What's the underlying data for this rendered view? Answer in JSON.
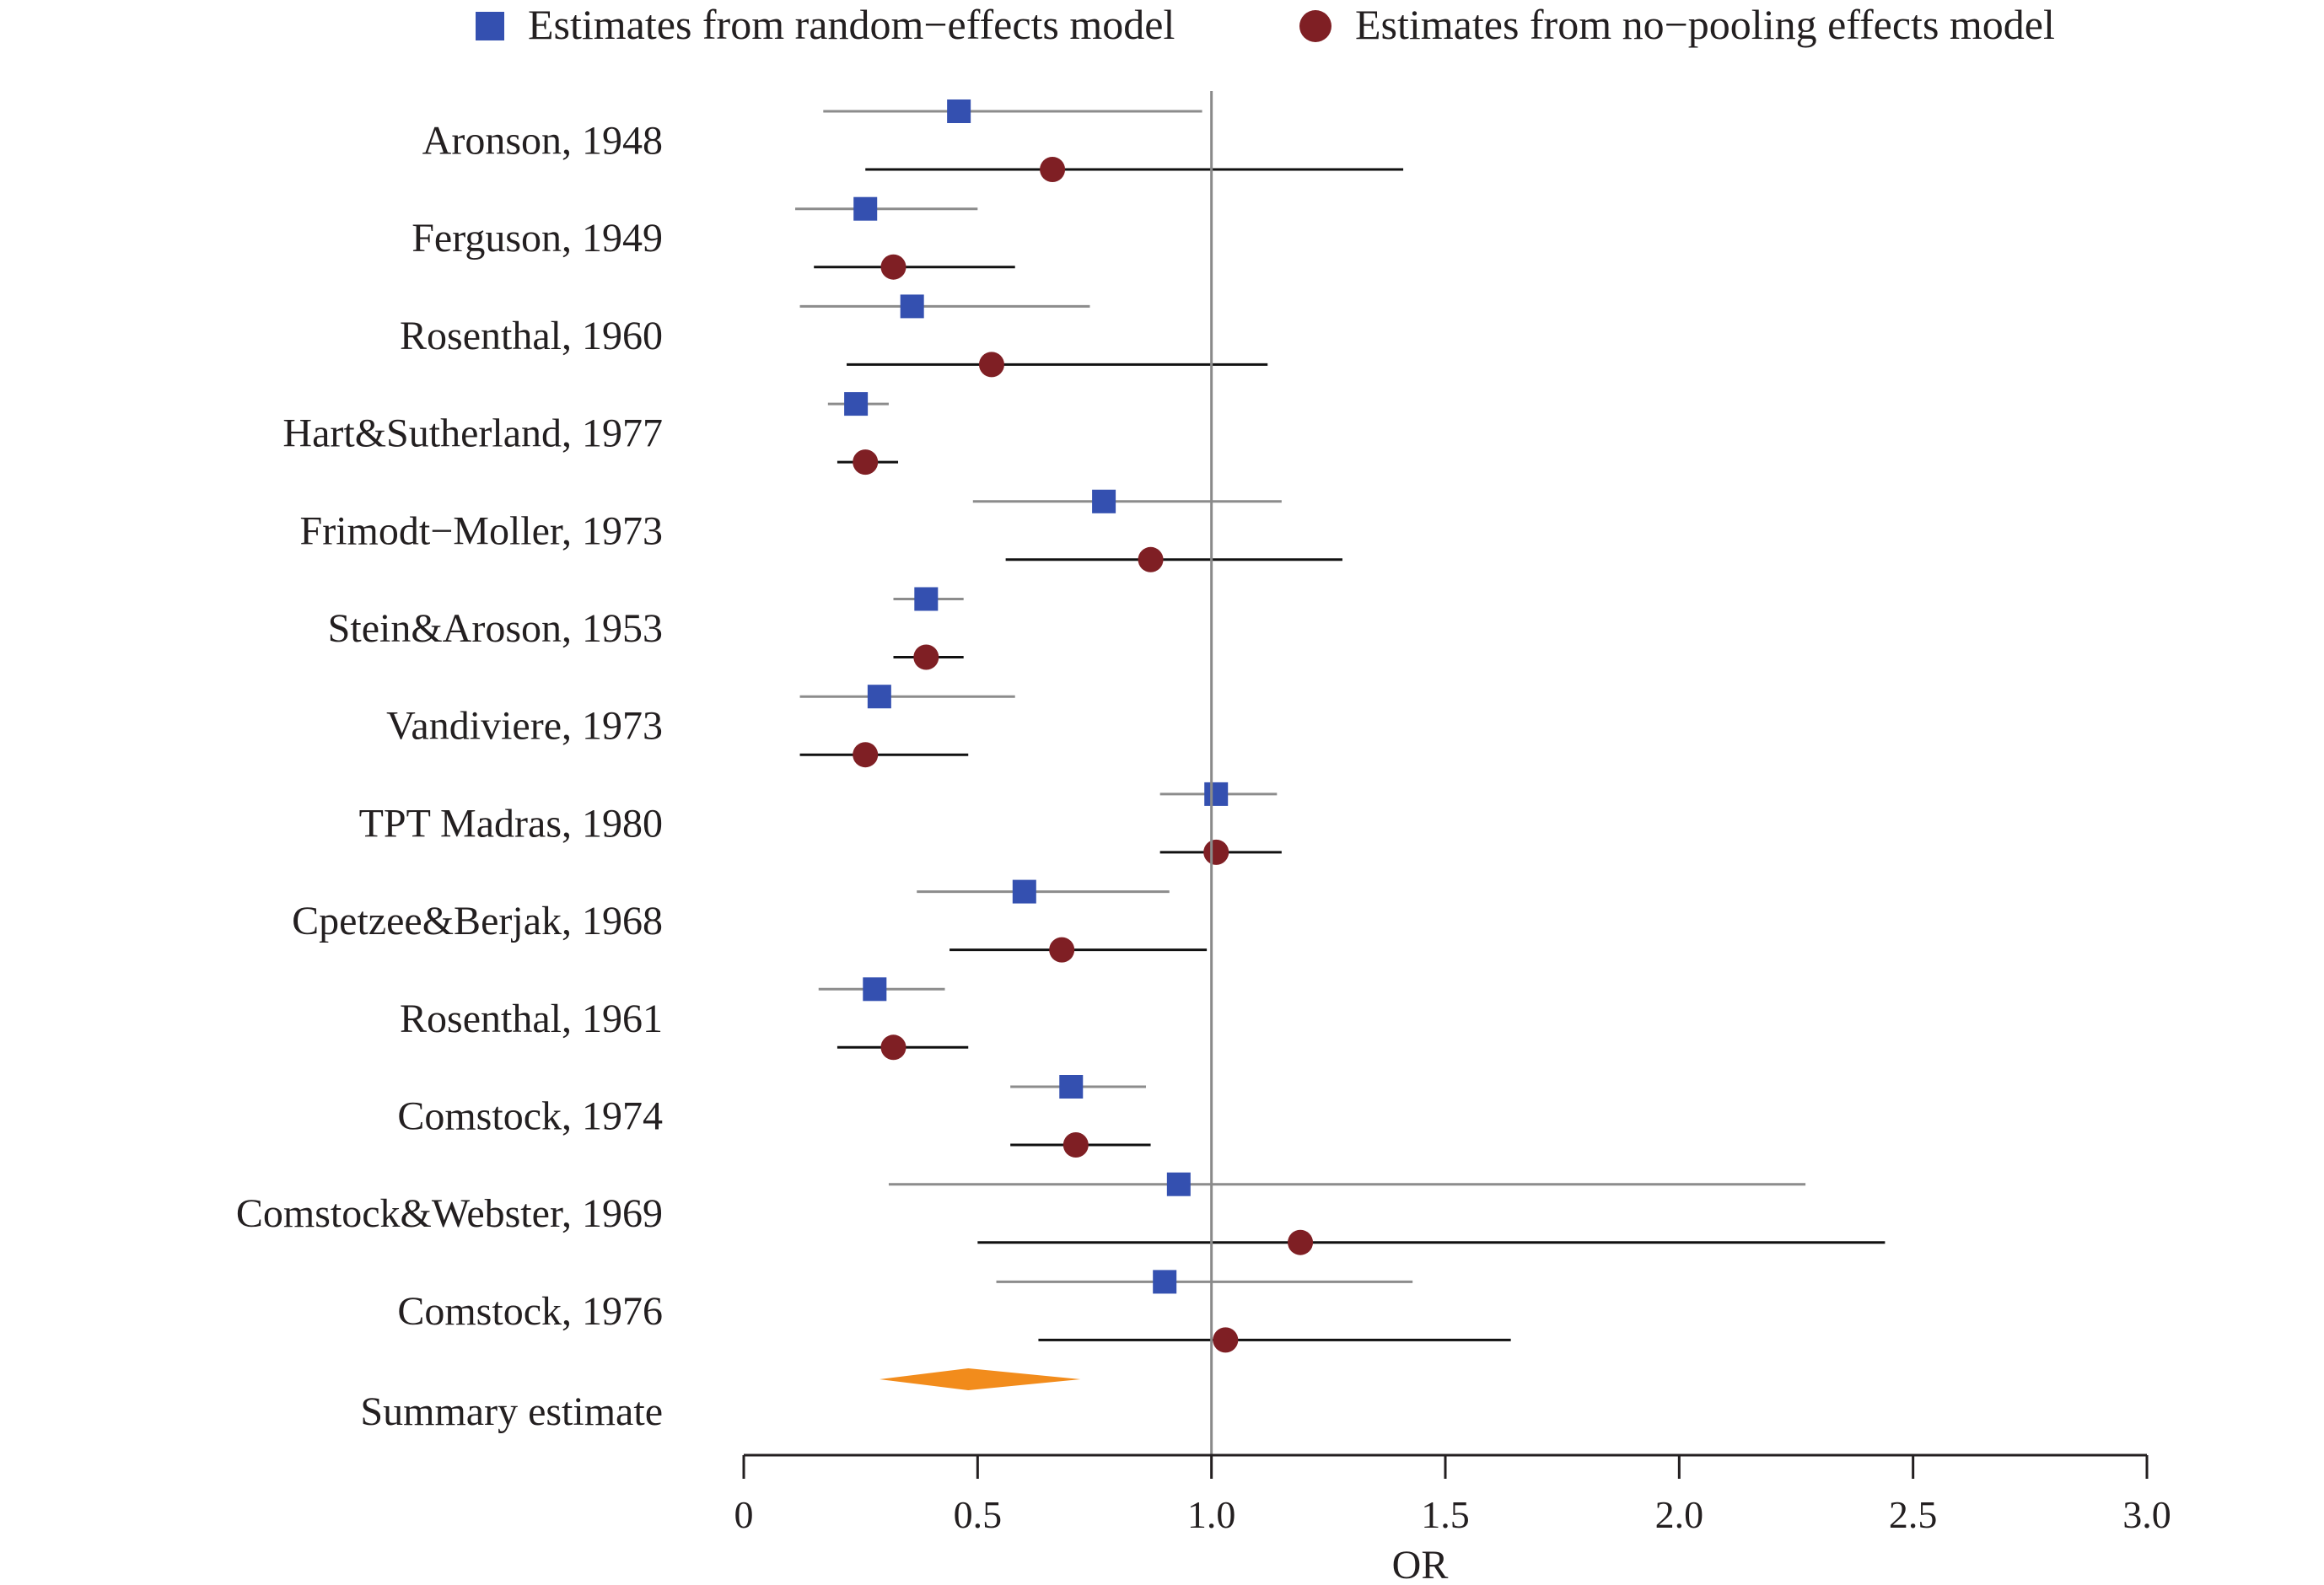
{
  "chart_data": {
    "type": "forest",
    "title": "",
    "xlabel": "OR",
    "ylabel": "",
    "xlim": [
      0,
      3.0
    ],
    "xticks": [
      0,
      0.5,
      1.0,
      1.5,
      2.0,
      2.5,
      3.0
    ],
    "xtick_labels": [
      "0",
      "0.5",
      "1.0",
      "1.5",
      "2.0",
      "2.5",
      "3.0"
    ],
    "reference_line": 1.0,
    "grid": false,
    "legend_position": "top",
    "series": [
      {
        "name": "Estimates from random−effects model",
        "marker": "square",
        "color": "#3450b0",
        "ci_color": "#8c8c8c"
      },
      {
        "name": "Estimates from no−pooling effects model",
        "marker": "circle",
        "color": "#7f1f24",
        "ci_color": "#111111"
      }
    ],
    "studies": [
      {
        "label": "Aronson, 1948",
        "random": {
          "est": 0.46,
          "low": 0.17,
          "high": 0.98
        },
        "nopool": {
          "est": 0.66,
          "low": 0.26,
          "high": 1.41
        }
      },
      {
        "label": "Ferguson, 1949",
        "random": {
          "est": 0.26,
          "low": 0.11,
          "high": 0.5
        },
        "nopool": {
          "est": 0.32,
          "low": 0.15,
          "high": 0.58
        }
      },
      {
        "label": "Rosenthal, 1960",
        "random": {
          "est": 0.36,
          "low": 0.12,
          "high": 0.74
        },
        "nopool": {
          "est": 0.53,
          "low": 0.22,
          "high": 1.12
        }
      },
      {
        "label": "Hart&Sutherland, 1977",
        "random": {
          "est": 0.24,
          "low": 0.18,
          "high": 0.31
        },
        "nopool": {
          "est": 0.26,
          "low": 0.2,
          "high": 0.33
        }
      },
      {
        "label": "Frimodt−Moller, 1973",
        "random": {
          "est": 0.77,
          "low": 0.49,
          "high": 1.15
        },
        "nopool": {
          "est": 0.87,
          "low": 0.56,
          "high": 1.28
        }
      },
      {
        "label": "Stein&Aroson, 1953",
        "random": {
          "est": 0.39,
          "low": 0.32,
          "high": 0.47
        },
        "nopool": {
          "est": 0.39,
          "low": 0.32,
          "high": 0.47
        }
      },
      {
        "label": "Vandiviere, 1973",
        "random": {
          "est": 0.29,
          "low": 0.12,
          "high": 0.58
        },
        "nopool": {
          "est": 0.26,
          "low": 0.12,
          "high": 0.48
        }
      },
      {
        "label": "TPT Madras, 1980",
        "random": {
          "est": 1.01,
          "low": 0.89,
          "high": 1.14
        },
        "nopool": {
          "est": 1.01,
          "low": 0.89,
          "high": 1.15
        }
      },
      {
        "label": "Cpetzee&Berjak, 1968",
        "random": {
          "est": 0.6,
          "low": 0.37,
          "high": 0.91
        },
        "nopool": {
          "est": 0.68,
          "low": 0.44,
          "high": 0.99
        }
      },
      {
        "label": "Rosenthal, 1961",
        "random": {
          "est": 0.28,
          "low": 0.16,
          "high": 0.43
        },
        "nopool": {
          "est": 0.32,
          "low": 0.2,
          "high": 0.48
        }
      },
      {
        "label": "Comstock, 1974",
        "random": {
          "est": 0.7,
          "low": 0.57,
          "high": 0.86
        },
        "nopool": {
          "est": 0.71,
          "low": 0.57,
          "high": 0.87
        }
      },
      {
        "label": "Comstock&Webster, 1969",
        "random": {
          "est": 0.93,
          "low": 0.31,
          "high": 2.27
        },
        "nopool": {
          "est": 1.19,
          "low": 0.5,
          "high": 2.44
        }
      },
      {
        "label": "Comstock, 1976",
        "random": {
          "est": 0.9,
          "low": 0.54,
          "high": 1.43
        },
        "nopool": {
          "est": 1.03,
          "low": 0.63,
          "high": 1.64
        }
      }
    ],
    "summary": {
      "label": "Summary estimate",
      "est": 0.48,
      "low": 0.29,
      "high": 0.72,
      "color": "#f28c1c"
    }
  }
}
